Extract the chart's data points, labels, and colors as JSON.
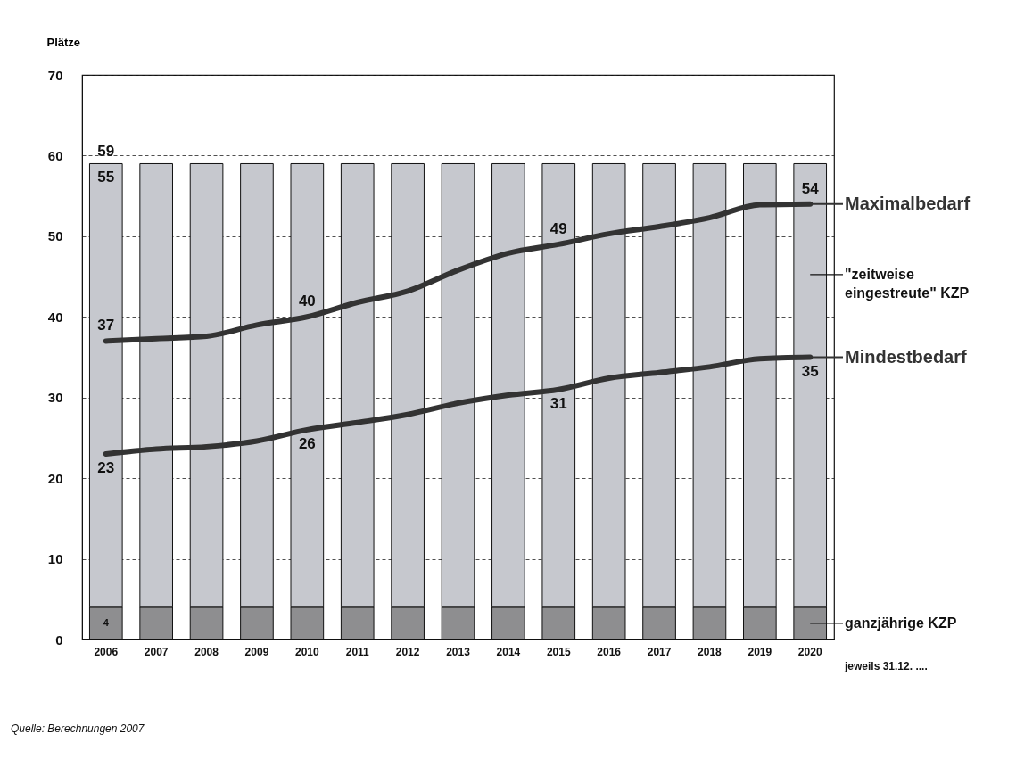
{
  "chart_data": {
    "type": "bar",
    "stacked": true,
    "ylabel": "Plätze",
    "categories": [
      "2006",
      "2007",
      "2008",
      "2009",
      "2010",
      "2011",
      "2012",
      "2013",
      "2014",
      "2015",
      "2016",
      "2017",
      "2018",
      "2019",
      "2020"
    ],
    "series": [
      {
        "name": "ganzjährige KZP",
        "color": "#8e8e90",
        "values": [
          4,
          4,
          4,
          4,
          4,
          4,
          4,
          4,
          4,
          4,
          4,
          4,
          4,
          4,
          4
        ],
        "value_labels": [
          "4",
          null,
          null,
          null,
          null,
          null,
          null,
          null,
          null,
          null,
          null,
          null,
          null,
          null,
          null
        ]
      },
      {
        "name": "\"zeitweise eingestreute\" KZP",
        "color": "#c6c8ce",
        "values": [
          55,
          55,
          55,
          55,
          55,
          55,
          55,
          55,
          55,
          55,
          55,
          55,
          55,
          55,
          55
        ],
        "value_labels": [
          "55",
          null,
          null,
          null,
          null,
          null,
          null,
          null,
          null,
          null,
          null,
          null,
          null,
          null,
          null
        ]
      },
      {
        "name": "Maximalbedarf",
        "type": "line",
        "color": "#333333",
        "values": [
          37,
          37.3,
          37.6,
          39,
          40,
          41.8,
          43.2,
          45.8,
          47.9,
          49,
          50.3,
          51.2,
          52.3,
          53.9,
          54
        ],
        "value_labels": [
          "37",
          null,
          null,
          null,
          "40",
          null,
          null,
          null,
          null,
          "49",
          null,
          null,
          null,
          null,
          "54"
        ]
      },
      {
        "name": "Mindestbedarf",
        "type": "line",
        "color": "#333333",
        "values": [
          23,
          23.6,
          23.9,
          24.6,
          26,
          26.9,
          27.9,
          29.3,
          30.3,
          31,
          32.4,
          33.1,
          33.8,
          34.8,
          35
        ],
        "value_labels": [
          "23",
          null,
          null,
          null,
          "26",
          null,
          null,
          null,
          null,
          "31",
          null,
          null,
          null,
          null,
          "35"
        ]
      }
    ],
    "totals": [
      "59",
      null,
      null,
      null,
      null,
      null,
      null,
      null,
      null,
      null,
      null,
      null,
      null,
      null,
      null
    ],
    "ylim": [
      0,
      70
    ],
    "yticks": [
      0,
      10,
      20,
      30,
      40,
      50,
      60,
      70
    ],
    "grid": "y",
    "legend": "right",
    "line_style": "solid",
    "marker": "none",
    "annotations": [
      "jeweils 31.12. ....",
      "Quelle: Berechnungen 2007"
    ]
  }
}
